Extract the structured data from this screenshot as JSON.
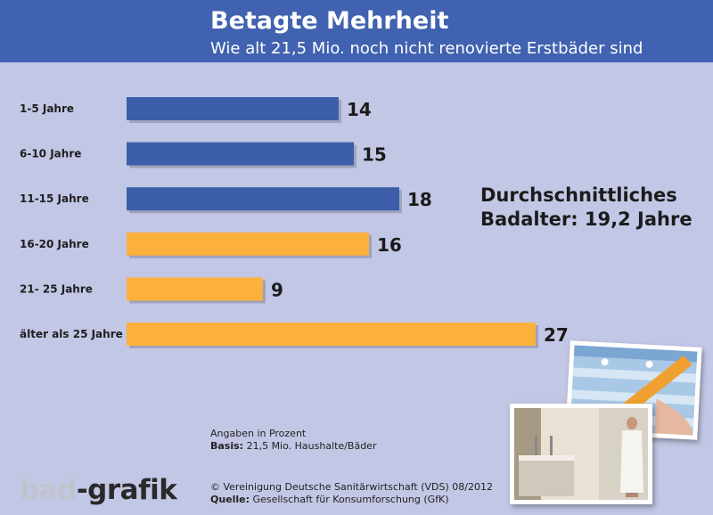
{
  "header": {
    "title": "Betagte Mehrheit",
    "subtitle": "Wie alt 21,5 Mio. noch nicht renovierte Erstbäder sind"
  },
  "highlight": {
    "line1": "Durchschnittliches",
    "line2": "Badalter: 19,2 Jahre"
  },
  "notes": {
    "unit": "Angaben in Prozent",
    "basis_label": "Basis:",
    "basis_text": " 21,5 Mio. Haushalte/Bäder",
    "copyright": "© Vereinigung Deutsche Sanitärwirtschaft (VDS)  08/2012",
    "source_label": "Quelle:",
    "source_text": " Gesellschaft für Konsumforschung (GfK)"
  },
  "logo": {
    "part1": "bad",
    "part2": "-grafik"
  },
  "colors": {
    "blue": "#3d5fa9",
    "orange": "#fbb13c",
    "header": "#4062b0",
    "background": "#c3c7e6"
  },
  "chart_data": {
    "type": "bar",
    "orientation": "horizontal",
    "categories": [
      "1-5 Jahre",
      "6-10 Jahre",
      "11-15 Jahre",
      "16-20 Jahre",
      "21- 25 Jahre",
      "älter als 25 Jahre"
    ],
    "values": [
      14,
      15,
      18,
      16,
      9,
      27
    ],
    "bar_colors": [
      "#3d5fa9",
      "#3d5fa9",
      "#3d5fa9",
      "#fbb13c",
      "#fbb13c",
      "#fbb13c"
    ],
    "xlim": [
      0,
      27
    ],
    "grid": false,
    "legend": "none"
  }
}
